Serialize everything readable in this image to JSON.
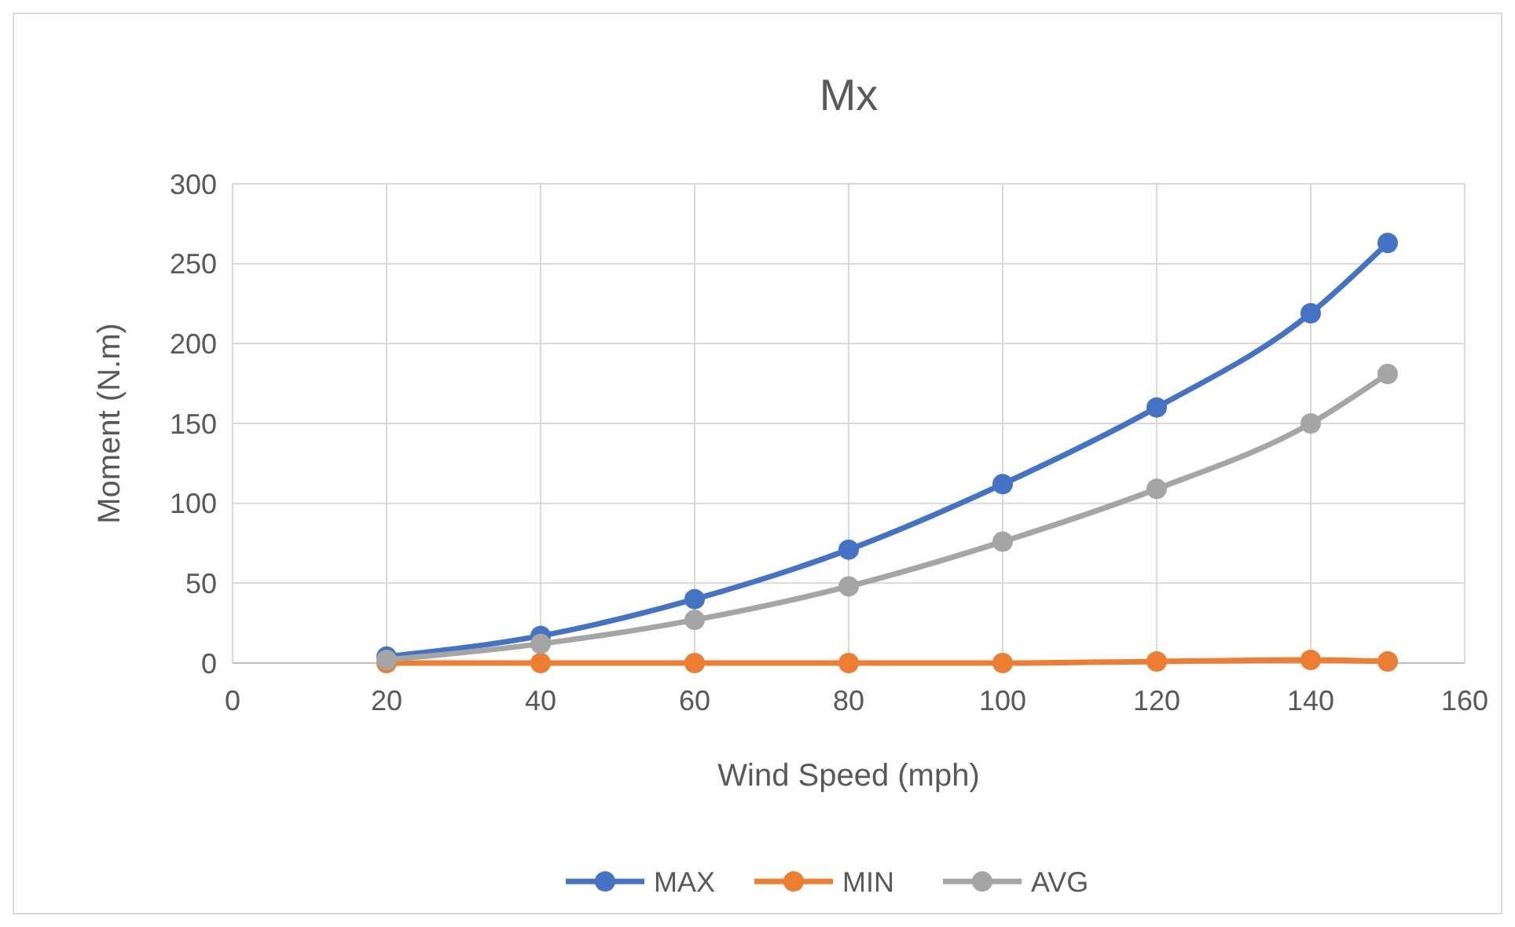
{
  "chart_data": {
    "type": "line",
    "title": "Mx",
    "xlabel": "Wind Speed (mph)",
    "ylabel": "Moment (N.m)",
    "x": [
      20,
      40,
      60,
      80,
      100,
      120,
      140,
      150
    ],
    "series": [
      {
        "name": "MAX",
        "color": "#4472c4",
        "values": [
          4,
          17,
          40,
          71,
          112,
          160,
          219,
          263
        ]
      },
      {
        "name": "MIN",
        "color": "#ed7d31",
        "values": [
          0,
          0,
          0,
          0,
          0,
          1,
          2,
          1
        ]
      },
      {
        "name": "AVG",
        "color": "#a5a5a5",
        "values": [
          2,
          12,
          27,
          48,
          76,
          109,
          150,
          181
        ]
      }
    ],
    "xlim": [
      0,
      160
    ],
    "xticks": [
      0,
      20,
      40,
      60,
      80,
      100,
      120,
      140,
      160
    ],
    "ylim": [
      0,
      300
    ],
    "yticks": [
      0,
      50,
      100,
      150,
      200,
      250,
      300
    ],
    "grid": true,
    "legend": "bottom",
    "marker": "circle",
    "line_style": "solid"
  }
}
